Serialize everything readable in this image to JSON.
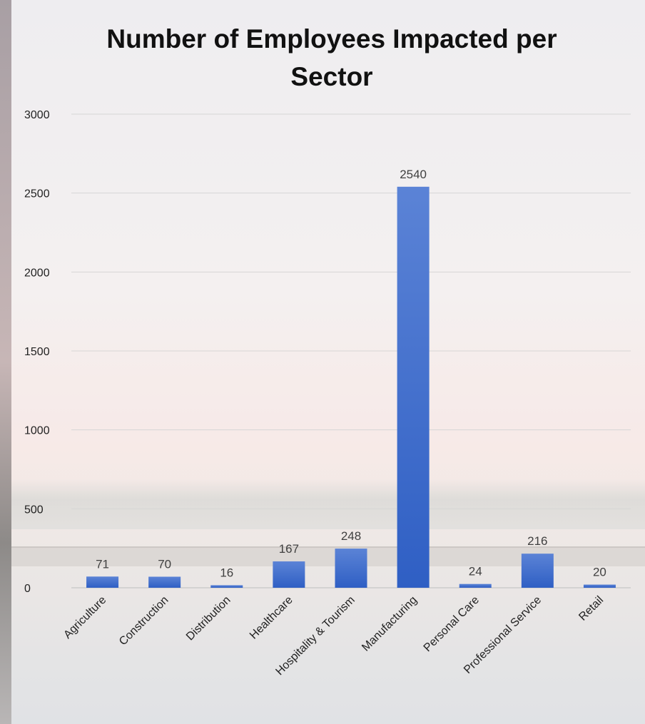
{
  "chart_data": {
    "type": "bar",
    "title": "Number of Employees Impacted per Sector",
    "xlabel": "",
    "ylabel": "",
    "categories": [
      "Agriculture",
      "Construction",
      "Distribution",
      "Healthcare",
      "Hospitality & Tourism",
      "Manufacturing",
      "Personal Care",
      "Professional Service",
      "Retail"
    ],
    "values": [
      71,
      70,
      16,
      167,
      248,
      2540,
      24,
      216,
      20
    ],
    "ylim": [
      0,
      3000
    ],
    "yticks": [
      0,
      500,
      1000,
      1500,
      2000,
      2500,
      3000
    ],
    "grid": true,
    "legend": "none",
    "data_labels": true,
    "bar_color": "#3f6fcf"
  }
}
